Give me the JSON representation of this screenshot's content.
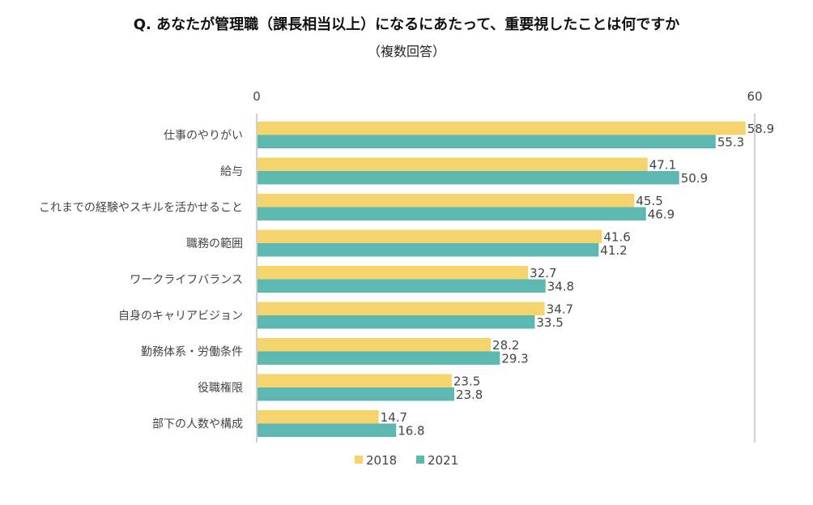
{
  "chart_data": {
    "type": "bar",
    "orientation": "horizontal",
    "title": "Q.  あなたが管理職（課長相当以上）になるにあたって、重要視したことは何ですか",
    "subtitle": "（複数回答）",
    "categories": [
      "仕事のやりがい",
      "給与",
      "これまでの経験やスキルを活かせること",
      "職務の範囲",
      "ワークライフバランス",
      "自身のキャリアビジョン",
      "勤務体系・労働条件",
      "役職権限",
      "部下の人数や構成"
    ],
    "series": [
      {
        "name": "2018",
        "color": "#F5D46E",
        "values": [
          58.9,
          47.1,
          45.5,
          41.6,
          32.7,
          34.7,
          28.2,
          23.5,
          14.7
        ]
      },
      {
        "name": "2021",
        "color": "#5DB8B2",
        "values": [
          55.3,
          50.9,
          46.9,
          41.2,
          34.8,
          33.5,
          29.3,
          23.8,
          16.8
        ]
      }
    ],
    "xlim": [
      0,
      60
    ],
    "x_ticks": [
      "0",
      "60"
    ],
    "axis_position": "top",
    "grid": false,
    "legend": "bottom"
  }
}
